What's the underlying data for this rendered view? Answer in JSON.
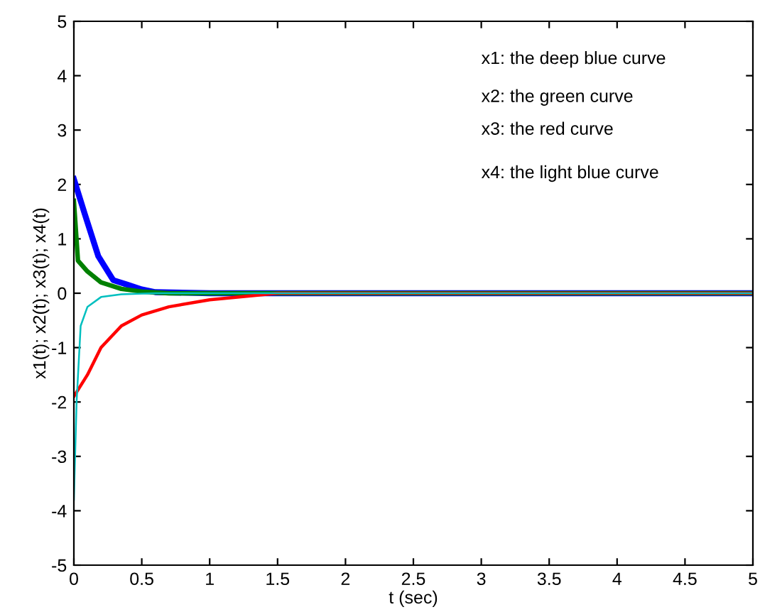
{
  "chart_data": {
    "type": "line",
    "xlabel": "t (sec)",
    "ylabel": "x1(t); x2(t); x3(t); x4(t)",
    "xlim": [
      0,
      5
    ],
    "ylim": [
      -5,
      5
    ],
    "xticks": [
      0,
      0.5,
      1,
      1.5,
      2,
      2.5,
      3,
      3.5,
      4,
      4.5,
      5
    ],
    "yticks": [
      -5,
      -4,
      -3,
      -2,
      -1,
      0,
      1,
      2,
      3,
      4,
      5
    ],
    "grid": false,
    "annotations": [
      "x1: the deep blue curve",
      "x2: the green curve",
      "x3: the red curve",
      "x4: the light blue curve"
    ],
    "series": [
      {
        "color": "#0000ff",
        "x": [
          0,
          0.08,
          0.18,
          0.29,
          0.39,
          0.5,
          0.6,
          1,
          5
        ],
        "values": [
          2.1,
          1.46,
          0.68,
          0.24,
          0.16,
          0.07,
          0.02,
          0,
          0
        ]
      },
      {
        "color": "#008000",
        "x": [
          0,
          0.03,
          0.1,
          0.2,
          0.35,
          0.5,
          0.7,
          5
        ],
        "values": [
          1.7,
          0.6,
          0.4,
          0.2,
          0.08,
          0.03,
          0,
          0
        ]
      },
      {
        "color": "#ff0000",
        "x": [
          0,
          0.1,
          0.2,
          0.35,
          0.5,
          0.7,
          1,
          1.3,
          1.5,
          5
        ],
        "values": [
          -1.9,
          -1.5,
          -1.0,
          -0.6,
          -0.4,
          -0.25,
          -0.12,
          -0.05,
          0,
          0
        ]
      },
      {
        "color": "#00bfbf",
        "x": [
          0,
          0.02,
          0.05,
          0.1,
          0.2,
          0.35,
          0.6,
          5
        ],
        "values": [
          -3.8,
          -2.0,
          -0.6,
          -0.25,
          -0.07,
          -0.02,
          0,
          0
        ]
      }
    ]
  }
}
